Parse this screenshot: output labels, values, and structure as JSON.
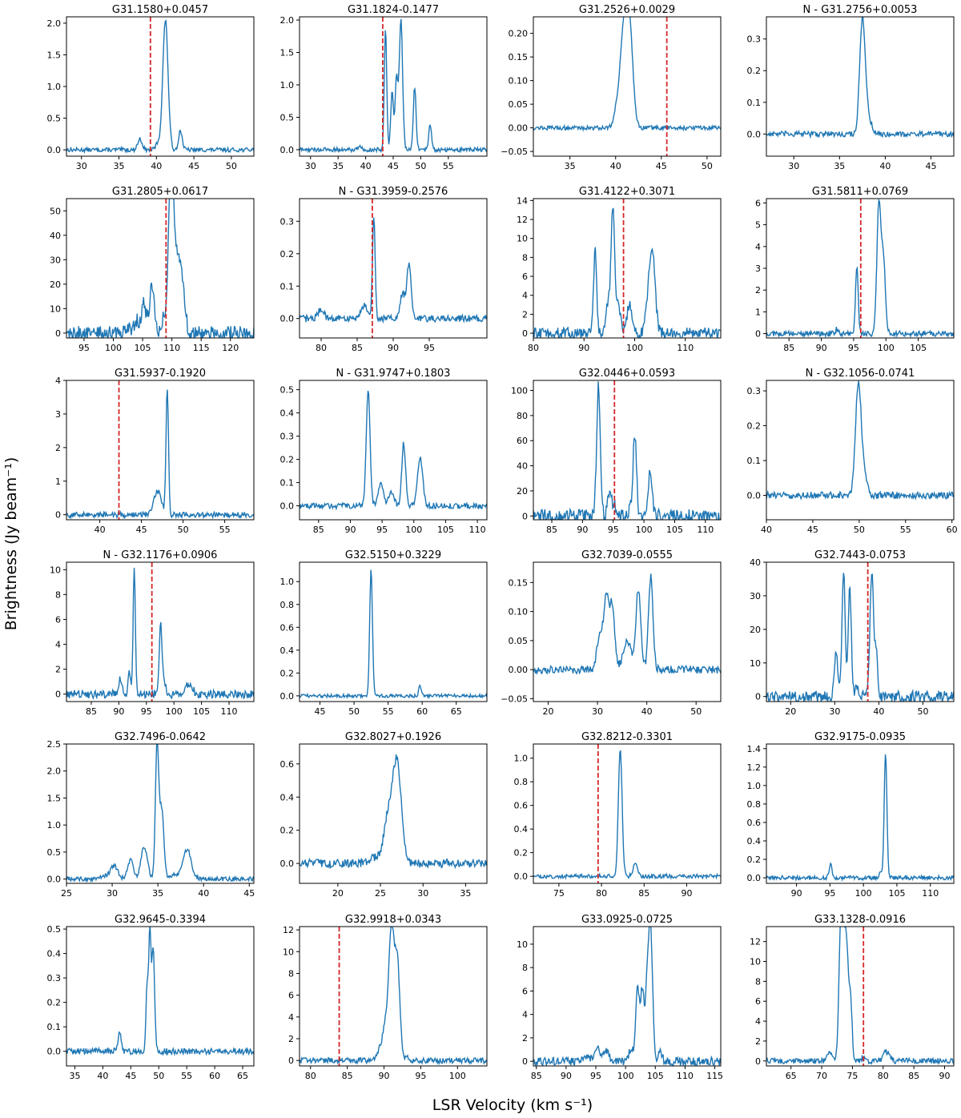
{
  "figure": {
    "xlabel": "LSR Velocity (km s⁻¹)",
    "ylabel": "Brightness (Jy beam⁻¹)",
    "line_color": "#1f77b4",
    "marker_color": "#d62728"
  },
  "chart_data": [
    {
      "type": "line",
      "title": "G31.1580+0.0457",
      "xlim": [
        28,
        53
      ],
      "ylim": [
        -0.1,
        2.1
      ],
      "xticks": [
        30,
        35,
        40,
        45,
        50
      ],
      "yticks": [
        0.0,
        0.5,
        1.0,
        1.5,
        2.0
      ],
      "ydec": 1,
      "marker": 39.2,
      "peaks": [
        [
          41.2,
          2.05,
          0.35
        ],
        [
          43.2,
          0.3,
          0.25
        ],
        [
          37.8,
          0.17,
          0.3
        ],
        [
          40.2,
          0.1,
          0.3
        ]
      ],
      "noise": 0.015
    },
    {
      "type": "line",
      "title": "G31.1824-0.1477",
      "xlim": [
        28,
        62
      ],
      "ylim": [
        -0.1,
        2.05
      ],
      "xticks": [
        30,
        35,
        40,
        45,
        50,
        55
      ],
      "yticks": [
        0.0,
        0.5,
        1.0,
        1.5,
        2.0
      ],
      "ydec": 1,
      "marker": 43.1,
      "peaks": [
        [
          43.6,
          1.9,
          0.22
        ],
        [
          44.8,
          0.9,
          0.25
        ],
        [
          45.6,
          1.1,
          0.25
        ],
        [
          46.4,
          2.0,
          0.3
        ],
        [
          48.9,
          0.97,
          0.25
        ],
        [
          51.7,
          0.4,
          0.25
        ],
        [
          38.9,
          0.06,
          0.3
        ]
      ],
      "noise": 0.015
    },
    {
      "type": "line",
      "title": "G31.2526+0.0029",
      "xlim": [
        31,
        51.5
      ],
      "ylim": [
        -0.06,
        0.235
      ],
      "xticks": [
        35,
        40,
        45,
        50
      ],
      "yticks": [
        -0.05,
        0.0,
        0.05,
        0.1,
        0.15,
        0.2
      ],
      "ydec": 2,
      "marker": 45.6,
      "peaks": [
        [
          41.0,
          0.21,
          0.4
        ],
        [
          41.6,
          0.16,
          0.35
        ],
        [
          40.3,
          0.05,
          0.4
        ]
      ],
      "noise": 0.015
    },
    {
      "type": "line",
      "title": "N - G31.2756+0.0053",
      "xlim": [
        27,
        47.5
      ],
      "ylim": [
        -0.07,
        0.37
      ],
      "xticks": [
        30,
        35,
        40,
        45
      ],
      "yticks": [
        0.0,
        0.1,
        0.2,
        0.3
      ],
      "ydec": 1,
      "marker": null,
      "peaks": [
        [
          37.5,
          0.35,
          0.3
        ],
        [
          38.1,
          0.05,
          0.4
        ]
      ],
      "noise": 0.02
    },
    {
      "type": "line",
      "title": "G31.2805+0.0617",
      "xlim": [
        92,
        124
      ],
      "ylim": [
        -2,
        55
      ],
      "xticks": [
        95,
        100,
        105,
        110,
        115,
        120
      ],
      "yticks": [
        0,
        10,
        20,
        30,
        40,
        50
      ],
      "ydec": 0,
      "marker": 109.0,
      "peaks": [
        [
          104.0,
          5,
          0.4
        ],
        [
          105.2,
          12,
          0.4
        ],
        [
          106.6,
          19,
          0.4
        ],
        [
          108.6,
          7,
          0.3
        ],
        [
          109.6,
          35,
          0.35
        ],
        [
          110.1,
          53,
          0.4
        ],
        [
          111.0,
          24,
          0.4
        ],
        [
          111.8,
          20,
          0.45
        ],
        [
          102.5,
          2,
          0.6
        ]
      ],
      "noise": 0.05
    },
    {
      "type": "line",
      "title": "N - G31.3959-0.2576",
      "xlim": [
        77,
        103
      ],
      "ylim": [
        -0.06,
        0.37
      ],
      "xticks": [
        80,
        85,
        90,
        95
      ],
      "yticks": [
        0.0,
        0.1,
        0.2,
        0.3
      ],
      "ydec": 1,
      "marker": 87.1,
      "peaks": [
        [
          87.3,
          0.32,
          0.18
        ],
        [
          92.2,
          0.17,
          0.3
        ],
        [
          91.3,
          0.08,
          0.3
        ],
        [
          86.0,
          0.04,
          0.5
        ],
        [
          80.0,
          0.03,
          0.4
        ]
      ],
      "noise": 0.025
    },
    {
      "type": "line",
      "title": "G31.4122+0.3071",
      "xlim": [
        80,
        117
      ],
      "ylim": [
        -0.5,
        14.2
      ],
      "xticks": [
        80,
        90,
        100,
        110
      ],
      "yticks": [
        0,
        2,
        4,
        6,
        8,
        10,
        12,
        14
      ],
      "ydec": 0,
      "marker": 97.8,
      "peaks": [
        [
          92.2,
          8.8,
          0.3
        ],
        [
          95.7,
          13.5,
          0.35
        ],
        [
          94.7,
          3.2,
          0.4
        ],
        [
          96.8,
          3.0,
          0.4
        ],
        [
          99.0,
          3.0,
          0.5
        ],
        [
          103.5,
          8.6,
          0.55
        ],
        [
          102.6,
          2.5,
          0.5
        ]
      ],
      "noise": 0.04
    },
    {
      "type": "line",
      "title": "G31.5811+0.0769",
      "xlim": [
        81.5,
        110.5
      ],
      "ylim": [
        -0.2,
        6.2
      ],
      "xticks": [
        85,
        90,
        95,
        100,
        105
      ],
      "yticks": [
        0,
        1,
        2,
        3,
        4,
        5,
        6
      ],
      "ydec": 0,
      "marker": 96.1,
      "peaks": [
        [
          95.5,
          3.2,
          0.2
        ],
        [
          98.9,
          6.0,
          0.3
        ],
        [
          99.6,
          3.5,
          0.3
        ],
        [
          92.5,
          0.25,
          0.25
        ]
      ],
      "noise": 0.02
    },
    {
      "type": "line",
      "title": "G31.5937-0.1920",
      "xlim": [
        36,
        58.5
      ],
      "ylim": [
        -0.15,
        4.0
      ],
      "xticks": [
        40,
        45,
        50,
        55
      ],
      "yticks": [
        0,
        1,
        2,
        3,
        4
      ],
      "ydec": 0,
      "marker": 42.3,
      "peaks": [
        [
          48.1,
          3.8,
          0.15
        ],
        [
          46.8,
          0.6,
          0.35
        ],
        [
          47.3,
          0.3,
          0.3
        ]
      ],
      "noise": 0.02
    },
    {
      "type": "line",
      "title": "N - G31.9747+0.1803",
      "xlim": [
        82,
        111.5
      ],
      "ylim": [
        -0.06,
        0.54
      ],
      "xticks": [
        85,
        90,
        95,
        100,
        105,
        110
      ],
      "yticks": [
        0.0,
        0.1,
        0.2,
        0.3,
        0.4,
        0.5
      ],
      "ydec": 1,
      "marker": null,
      "peaks": [
        [
          92.8,
          0.5,
          0.3
        ],
        [
          94.8,
          0.1,
          0.4
        ],
        [
          98.4,
          0.27,
          0.3
        ],
        [
          101.0,
          0.21,
          0.4
        ],
        [
          96.5,
          0.06,
          0.4
        ]
      ],
      "noise": 0.02
    },
    {
      "type": "line",
      "title": "G32.0446+0.0593",
      "xlim": [
        82,
        112.5
      ],
      "ylim": [
        -3,
        108
      ],
      "xticks": [
        85,
        90,
        95,
        100,
        105,
        110
      ],
      "yticks": [
        0,
        20,
        40,
        60,
        80,
        100
      ],
      "ydec": 0,
      "marker": 95.2,
      "peaks": [
        [
          92.6,
          103,
          0.3
        ],
        [
          94.4,
          18,
          0.3
        ],
        [
          95.2,
          9,
          0.3
        ],
        [
          98.5,
          63,
          0.3
        ],
        [
          101.0,
          33,
          0.35
        ],
        [
          97.6,
          3,
          0.3
        ]
      ],
      "noise": 0.05
    },
    {
      "type": "line",
      "title": "N - G32.1056-0.0741",
      "xlim": [
        40,
        60.2
      ],
      "ylim": [
        -0.07,
        0.33
      ],
      "xticks": [
        40,
        45,
        50,
        55,
        60
      ],
      "yticks": [
        0.0,
        0.1,
        0.2,
        0.3
      ],
      "ydec": 1,
      "marker": null,
      "peaks": [
        [
          49.9,
          0.3,
          0.3
        ],
        [
          50.4,
          0.06,
          0.4
        ]
      ],
      "noise": 0.025
    },
    {
      "type": "line",
      "title": "N - G32.1176+0.0906",
      "xlim": [
        80.5,
        114.5
      ],
      "ylim": [
        -0.6,
        10.6
      ],
      "xticks": [
        85,
        90,
        95,
        100,
        105,
        110
      ],
      "yticks": [
        0,
        2,
        4,
        6,
        8,
        10
      ],
      "ydec": 0,
      "marker": 96.0,
      "peaks": [
        [
          92.8,
          10.3,
          0.2
        ],
        [
          91.9,
          2.0,
          0.2
        ],
        [
          90.3,
          1.2,
          0.3
        ],
        [
          97.6,
          5.6,
          0.25
        ],
        [
          102.7,
          0.9,
          0.6
        ],
        [
          98.3,
          0.8,
          0.3
        ]
      ],
      "noise": 0.03
    },
    {
      "type": "line",
      "title": "G32.5150+0.3229",
      "xlim": [
        42,
        69.5
      ],
      "ylim": [
        -0.05,
        1.17
      ],
      "xticks": [
        45,
        50,
        55,
        60,
        65
      ],
      "yticks": [
        0.0,
        0.2,
        0.4,
        0.6,
        0.8,
        1.0
      ],
      "ydec": 1,
      "marker": null,
      "peaks": [
        [
          52.5,
          1.12,
          0.2
        ],
        [
          59.7,
          0.09,
          0.2
        ]
      ],
      "noise": 0.012
    },
    {
      "type": "line",
      "title": "G32.7039-0.0555",
      "xlim": [
        17,
        55
      ],
      "ylim": [
        -0.055,
        0.185
      ],
      "xticks": [
        20,
        30,
        40,
        50
      ],
      "yticks": [
        -0.05,
        0.0,
        0.05,
        0.1,
        0.15
      ],
      "ydec": 2,
      "marker": null,
      "peaks": [
        [
          31.8,
          0.12,
          0.5
        ],
        [
          33.0,
          0.11,
          0.5
        ],
        [
          38.3,
          0.14,
          0.5
        ],
        [
          40.8,
          0.16,
          0.45
        ],
        [
          30.5,
          0.06,
          0.6
        ],
        [
          36.0,
          0.05,
          0.8
        ]
      ],
      "noise": 0.028
    },
    {
      "type": "line",
      "title": "G32.7443-0.0753",
      "xlim": [
        14.5,
        57
      ],
      "ylim": [
        -1.5,
        40
      ],
      "xticks": [
        20,
        30,
        40,
        50
      ],
      "yticks": [
        0,
        10,
        20,
        30,
        40
      ],
      "ydec": 0,
      "marker": 37.5,
      "peaks": [
        [
          30.3,
          13,
          0.4
        ],
        [
          32.0,
          37,
          0.35
        ],
        [
          33.4,
          33,
          0.35
        ],
        [
          38.4,
          38,
          0.4
        ],
        [
          39.4,
          13,
          0.3
        ],
        [
          35.0,
          2,
          0.6
        ]
      ],
      "noise": 0.04
    },
    {
      "type": "line",
      "title": "G32.7496-0.0642",
      "xlim": [
        25,
        45.5
      ],
      "ylim": [
        -0.08,
        2.5
      ],
      "xticks": [
        25,
        30,
        35,
        40,
        45
      ],
      "yticks": [
        0.0,
        0.5,
        1.0,
        1.5,
        2.0,
        2.5
      ],
      "ydec": 1,
      "marker": null,
      "peaks": [
        [
          30.2,
          0.25,
          0.4
        ],
        [
          32.0,
          0.35,
          0.3
        ],
        [
          33.5,
          0.6,
          0.35
        ],
        [
          34.9,
          2.38,
          0.18
        ],
        [
          35.4,
          1.3,
          0.25
        ],
        [
          38.2,
          0.55,
          0.45
        ],
        [
          29.0,
          0.05,
          0.5
        ],
        [
          36.7,
          0.08,
          0.4
        ]
      ],
      "noise": 0.015
    },
    {
      "type": "line",
      "title": "G32.8027+0.1926",
      "xlim": [
        15.5,
        37.5
      ],
      "ylim": [
        -0.12,
        0.72
      ],
      "xticks": [
        20,
        25,
        30,
        35
      ],
      "yticks": [
        0.0,
        0.2,
        0.4,
        0.6
      ],
      "ydec": 1,
      "marker": null,
      "peaks": [
        [
          26.9,
          0.62,
          0.55
        ],
        [
          25.8,
          0.22,
          0.45
        ],
        [
          24.6,
          0.04,
          0.8
        ]
      ],
      "noise": 0.03
    },
    {
      "type": "line",
      "title": "G32.8212-0.3301",
      "xlim": [
        72,
        94
      ],
      "ylim": [
        -0.06,
        1.12
      ],
      "xticks": [
        75,
        80,
        85,
        90
      ],
      "yticks": [
        0.0,
        0.2,
        0.4,
        0.6,
        0.8,
        1.0
      ],
      "ydec": 1,
      "marker": 79.6,
      "peaks": [
        [
          82.2,
          1.08,
          0.22
        ],
        [
          84.0,
          0.12,
          0.25
        ]
      ],
      "noise": 0.015
    },
    {
      "type": "line",
      "title": "G32.9175-0.0935",
      "xlim": [
        85.5,
        113.5
      ],
      "ylim": [
        -0.06,
        1.45
      ],
      "xticks": [
        90,
        95,
        100,
        105,
        110
      ],
      "yticks": [
        0.0,
        0.2,
        0.4,
        0.6,
        0.8,
        1.0,
        1.2,
        1.4
      ],
      "ydec": 1,
      "marker": null,
      "peaks": [
        [
          103.3,
          1.37,
          0.2
        ],
        [
          95.1,
          0.17,
          0.2
        ],
        [
          102.6,
          0.06,
          0.25
        ]
      ],
      "noise": 0.015
    },
    {
      "type": "line",
      "title": "G32.9645-0.3394",
      "xlim": [
        33.5,
        67
      ],
      "ylim": [
        -0.06,
        0.51
      ],
      "xticks": [
        35,
        40,
        45,
        50,
        55,
        60,
        65
      ],
      "yticks": [
        0.0,
        0.1,
        0.2,
        0.3,
        0.4,
        0.5
      ],
      "ydec": 1,
      "marker": null,
      "peaks": [
        [
          47.9,
          0.26,
          0.2
        ],
        [
          48.4,
          0.48,
          0.2
        ],
        [
          49.0,
          0.43,
          0.25
        ],
        [
          43.0,
          0.07,
          0.3
        ]
      ],
      "noise": 0.022
    },
    {
      "type": "line",
      "title": "G32.9918+0.0343",
      "xlim": [
        78.5,
        104
      ],
      "ylim": [
        -0.5,
        12.3
      ],
      "xticks": [
        80,
        85,
        90,
        95,
        100
      ],
      "yticks": [
        0,
        2,
        4,
        6,
        8,
        10,
        12
      ],
      "ydec": 0,
      "marker": 83.9,
      "peaks": [
        [
          90.2,
          3.2,
          0.4
        ],
        [
          91.0,
          11.6,
          0.35
        ],
        [
          91.8,
          9.2,
          0.35
        ],
        [
          89.3,
          0.8,
          0.4
        ],
        [
          93.0,
          0.3,
          0.3
        ]
      ],
      "noise": 0.02
    },
    {
      "type": "line",
      "title": "G33.0925-0.0725",
      "xlim": [
        84.5,
        116
      ],
      "ylim": [
        -0.4,
        11.5
      ],
      "xticks": [
        85,
        90,
        95,
        100,
        105,
        110,
        115
      ],
      "yticks": [
        0,
        2,
        4,
        6,
        8,
        10
      ],
      "ydec": 0,
      "marker": null,
      "peaks": [
        [
          95.2,
          1.2,
          0.45
        ],
        [
          96.7,
          1.0,
          0.45
        ],
        [
          100.9,
          1.1,
          0.35
        ],
        [
          102.0,
          6.5,
          0.3
        ],
        [
          102.8,
          6.0,
          0.3
        ],
        [
          103.6,
          5.4,
          0.3
        ],
        [
          104.2,
          11.2,
          0.35
        ],
        [
          105.8,
          1.0,
          0.3
        ],
        [
          93.5,
          0.3,
          0.4
        ]
      ],
      "noise": 0.03
    },
    {
      "type": "line",
      "title": "G33.1328-0.0916",
      "xlim": [
        61,
        91.5
      ],
      "ylim": [
        -0.5,
        13.5
      ],
      "xticks": [
        65,
        70,
        75,
        80,
        85,
        90
      ],
      "yticks": [
        0,
        2,
        4,
        6,
        8,
        10,
        12
      ],
      "ydec": 0,
      "marker": 76.8,
      "peaks": [
        [
          71.4,
          0.8,
          0.4
        ],
        [
          73.1,
          12.8,
          0.3
        ],
        [
          73.6,
          9.3,
          0.3
        ],
        [
          74.1,
          9.4,
          0.28
        ],
        [
          74.7,
          6.0,
          0.25
        ],
        [
          80.3,
          1.0,
          0.3
        ],
        [
          81.0,
          0.6,
          0.3
        ],
        [
          76.6,
          0.3,
          0.3
        ]
      ],
      "noise": 0.02
    }
  ]
}
